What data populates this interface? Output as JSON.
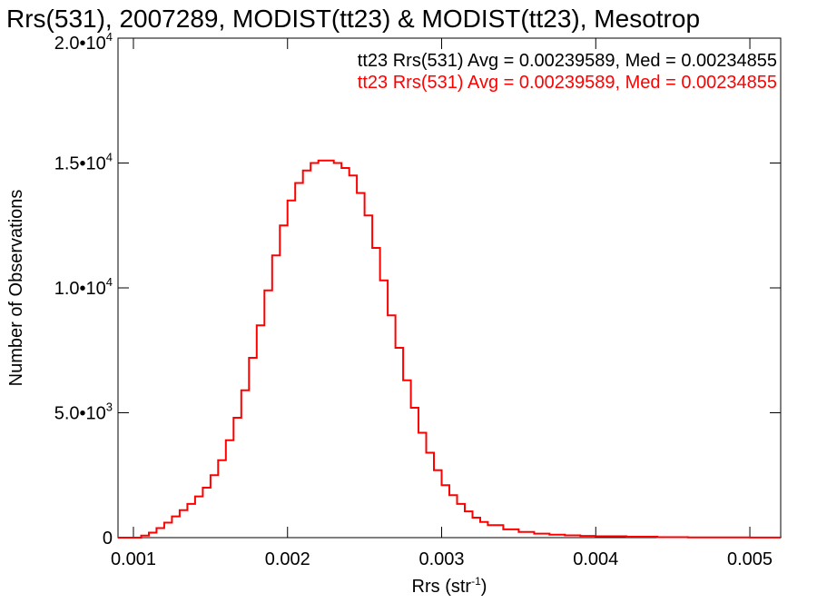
{
  "chart_data": {
    "type": "line",
    "title": "Rrs(531), 2007289, MODIST(tt23) & MODIST(tt23), Mesotrop",
    "xlabel": "Rrs (str",
    "xlabel_sup": "-1",
    "xlabel_end": ")",
    "ylabel": "Number of Observations",
    "xlim": [
      0.0009,
      0.0052
    ],
    "ylim": [
      0,
      20000
    ],
    "xticks": [
      {
        "value": 0.001,
        "label": "0.001"
      },
      {
        "value": 0.002,
        "label": "0.002"
      },
      {
        "value": 0.003,
        "label": "0.003"
      },
      {
        "value": 0.004,
        "label": "0.004"
      },
      {
        "value": 0.005,
        "label": "0.005"
      }
    ],
    "yticks": [
      {
        "value": 0,
        "base": "0",
        "exp": ""
      },
      {
        "value": 5000,
        "base": "5.0•10",
        "exp": "3"
      },
      {
        "value": 10000,
        "base": "1.0•10",
        "exp": "4"
      },
      {
        "value": 15000,
        "base": "1.5•10",
        "exp": "4"
      },
      {
        "value": 20000,
        "base": "2.0•10",
        "exp": "4"
      }
    ],
    "annotations": [
      {
        "text": "tt23 Rrs(531) Avg = 0.00239589, Med = 0.00234855",
        "color": "#000000"
      },
      {
        "text": "tt23 Rrs(531) Avg = 0.00239589, Med = 0.00234855",
        "color": "#ff0000"
      }
    ],
    "series": [
      {
        "color": "#ff0000",
        "x": [
          0.0009,
          0.001,
          0.00105,
          0.0011,
          0.00115,
          0.0012,
          0.00125,
          0.0013,
          0.00135,
          0.0014,
          0.00145,
          0.0015,
          0.00155,
          0.0016,
          0.00165,
          0.0017,
          0.00175,
          0.0018,
          0.00185,
          0.0019,
          0.00195,
          0.002,
          0.00205,
          0.0021,
          0.00215,
          0.0022,
          0.00225,
          0.0023,
          0.00235,
          0.0024,
          0.00245,
          0.0025,
          0.00255,
          0.0026,
          0.00265,
          0.0027,
          0.00275,
          0.0028,
          0.00285,
          0.0029,
          0.00295,
          0.003,
          0.00305,
          0.0031,
          0.00315,
          0.0032,
          0.00325,
          0.0033,
          0.0034,
          0.0035,
          0.0036,
          0.0037,
          0.0038,
          0.0039,
          0.004,
          0.0042,
          0.0044,
          0.0046,
          0.0048,
          0.005,
          0.0052
        ],
        "y": [
          0,
          0,
          80,
          200,
          380,
          600,
          850,
          1100,
          1350,
          1650,
          2000,
          2500,
          3100,
          3900,
          4800,
          5900,
          7200,
          8500,
          9900,
          11300,
          12500,
          13500,
          14200,
          14700,
          15000,
          15100,
          15100,
          15000,
          14800,
          14500,
          13800,
          12900,
          11600,
          10300,
          8900,
          7600,
          6300,
          5200,
          4200,
          3400,
          2700,
          2100,
          1700,
          1350,
          1050,
          800,
          630,
          500,
          330,
          230,
          160,
          120,
          90,
          70,
          55,
          35,
          20,
          12,
          8,
          4,
          0
        ]
      }
    ],
    "grid": false
  }
}
